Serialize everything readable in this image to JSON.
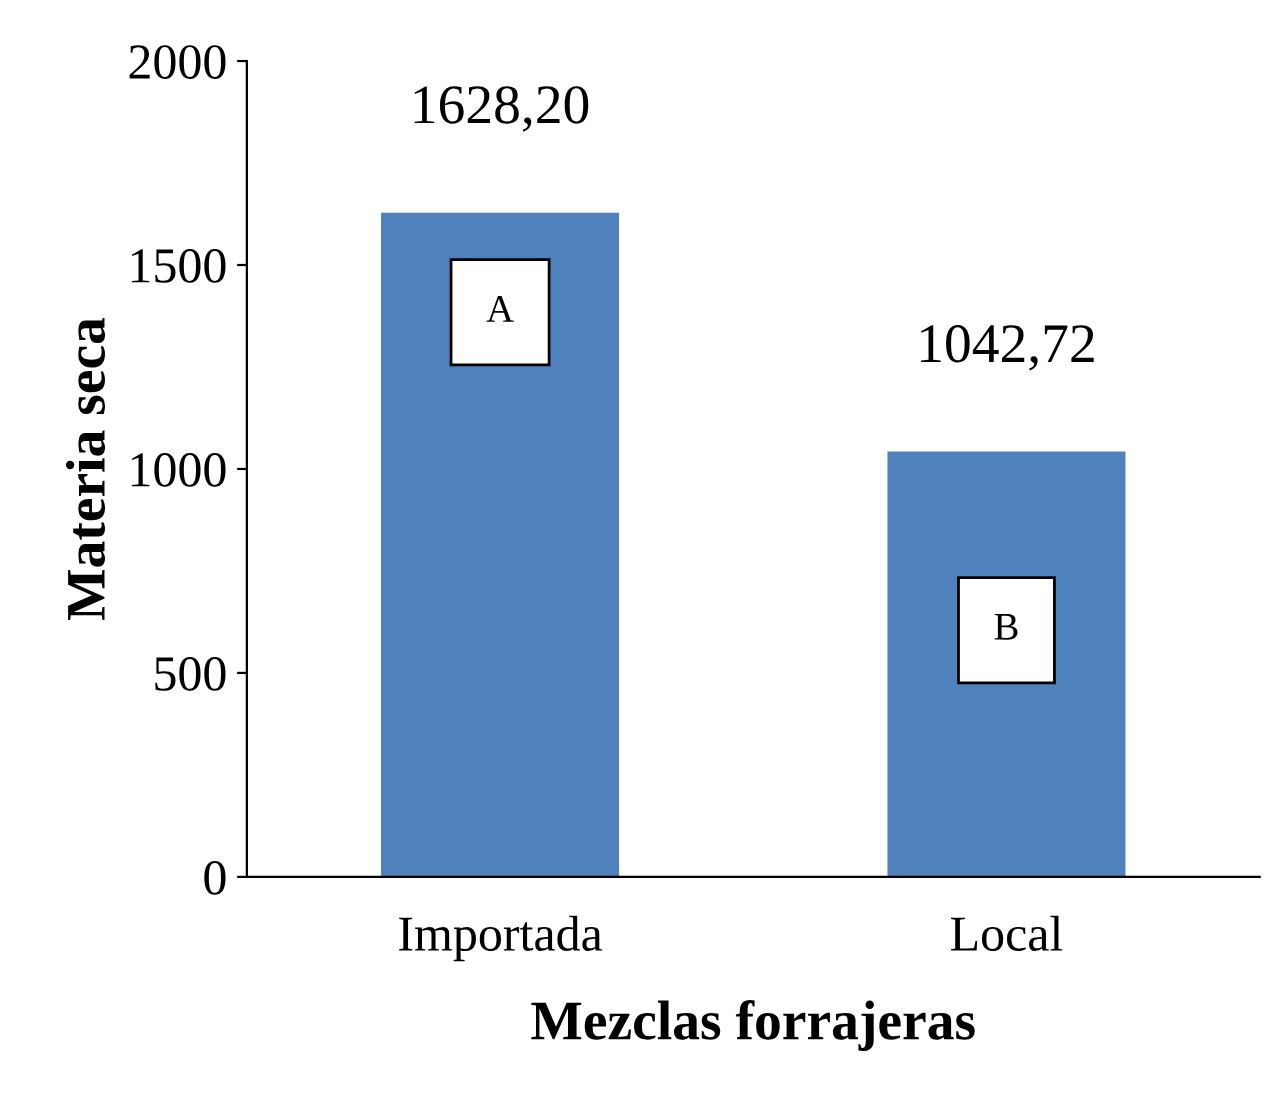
{
  "chart_data": {
    "type": "bar",
    "xlabel": "Mezclas forrajeras",
    "ylabel": "Materia seca",
    "categories": [
      "Importada",
      "Local"
    ],
    "values": [
      1628.2,
      1042.72
    ],
    "color": "#4f81bd",
    "value_labels": [
      "1628,20",
      "1042,72"
    ],
    "ylim": [
      0,
      2000
    ],
    "yticks": [
      0,
      500,
      1000,
      1500,
      2000
    ],
    "grid": false,
    "legend": false,
    "annotations": [
      "A",
      "B"
    ]
  }
}
